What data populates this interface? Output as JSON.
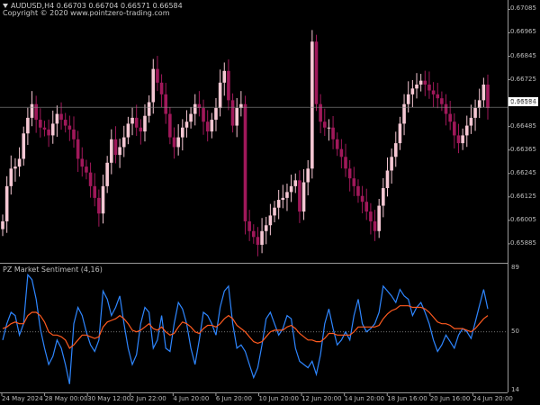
{
  "chart": {
    "symbol_line": "AUDUSD,H4  0.66703 0.66704 0.66571 0.66584",
    "copyright": "Copyright © 2020 www.pointzero-trading.com",
    "current_price": "0.66584",
    "indicator_title": "PZ Market Sentiment (4,16)",
    "colors": {
      "background": "#000000",
      "bull_candle": "#f5c7d3",
      "bear_candle": "#a0185a",
      "fast_line": "#2e86ff",
      "slow_line": "#ff5a1f"
    }
  },
  "price_axis": {
    "labels": [
      "0.67085",
      "0.66965",
      "0.66845",
      "0.66725",
      "0.66605",
      "0.66485",
      "0.66365",
      "0.66245",
      "0.66125",
      "0.66005",
      "0.65885"
    ]
  },
  "indicator_axis": {
    "labels": [
      "89",
      "50",
      "14"
    ]
  },
  "time_axis": {
    "labels": [
      "24 May 2024",
      "28 May 00:00",
      "30 May 12:00",
      "2 Jun 22:00",
      "4 Jun 20:00",
      "6 Jun 20:00",
      "10 Jun 20:00",
      "12 Jun 20:00",
      "14 Jun 20:00",
      "18 Jun 16:00",
      "20 Jun 16:00",
      "24 Jun 20:00"
    ]
  },
  "chart_data": [
    {
      "type": "candlestick",
      "title": "AUDUSD,H4",
      "ylim": [
        0.6582,
        0.6711
      ],
      "series": [
        {
          "name": "AUDUSD",
          "close": [
            0.66,
            0.6618,
            0.6627,
            0.6628,
            0.6632,
            0.6645,
            0.6653,
            0.666,
            0.6652,
            0.6648,
            0.6647,
            0.6644,
            0.665,
            0.6655,
            0.6652,
            0.6649,
            0.6647,
            0.6642,
            0.6632,
            0.6628,
            0.6625,
            0.6618,
            0.6612,
            0.6604,
            0.6618,
            0.663,
            0.6642,
            0.6634,
            0.6638,
            0.6643,
            0.665,
            0.6653,
            0.6648,
            0.6646,
            0.6654,
            0.6661,
            0.6678,
            0.6671,
            0.6665,
            0.6655,
            0.6643,
            0.6638,
            0.6643,
            0.6648,
            0.6651,
            0.6655,
            0.666,
            0.6658,
            0.6651,
            0.6646,
            0.6652,
            0.6658,
            0.6671,
            0.6677,
            0.6662,
            0.6649,
            0.6658,
            0.666,
            0.66,
            0.6595,
            0.6592,
            0.6588,
            0.6595,
            0.6598,
            0.6603,
            0.6607,
            0.6611,
            0.6612,
            0.6615,
            0.6618,
            0.6621,
            0.6605,
            0.662,
            0.6627,
            0.6692,
            0.666,
            0.6651,
            0.6648,
            0.6648,
            0.6642,
            0.6637,
            0.6633,
            0.6627,
            0.6622,
            0.6618,
            0.6613,
            0.661,
            0.6605,
            0.66,
            0.6595,
            0.6608,
            0.6617,
            0.6626,
            0.6633,
            0.664,
            0.665,
            0.666,
            0.6665,
            0.6668,
            0.667,
            0.6672,
            0.667,
            0.6667,
            0.6665,
            0.6663,
            0.666,
            0.6655,
            0.6651,
            0.6644,
            0.664,
            0.6644,
            0.6649,
            0.6653,
            0.6658,
            0.6662,
            0.667,
            0.6658
          ]
        }
      ]
    },
    {
      "type": "line",
      "title": "PZ Market Sentiment (4,16)",
      "ylim": [
        14,
        89
      ],
      "series": [
        {
          "name": "fast",
          "values": [
            45,
            55,
            62,
            60,
            48,
            55,
            85,
            82,
            70,
            52,
            40,
            30,
            35,
            45,
            40,
            30,
            18,
            55,
            65,
            60,
            50,
            42,
            38,
            45,
            75,
            70,
            60,
            65,
            72,
            55,
            40,
            30,
            36,
            55,
            65,
            62,
            40,
            45,
            60,
            40,
            38,
            55,
            68,
            64,
            55,
            40,
            30,
            45,
            62,
            60,
            55,
            48,
            65,
            75,
            78,
            55,
            40,
            42,
            38,
            30,
            22,
            28,
            42,
            58,
            62,
            55,
            48,
            52,
            60,
            58,
            40,
            32,
            30,
            28,
            32,
            24,
            36,
            55,
            64,
            52,
            42,
            45,
            50,
            45,
            60,
            70,
            55,
            50,
            52,
            55,
            62,
            78,
            75,
            72,
            68,
            76,
            72,
            70,
            60,
            65,
            68,
            62,
            55,
            45,
            38,
            42,
            48,
            44,
            40,
            48,
            52,
            50,
            46,
            56,
            66,
            76,
            64
          ]
        },
        {
          "name": "slow",
          "values": [
            52,
            53,
            55,
            56,
            55,
            55,
            60,
            62,
            62,
            60,
            56,
            50,
            48,
            48,
            47,
            45,
            40,
            42,
            45,
            48,
            48,
            47,
            46,
            47,
            53,
            56,
            57,
            58,
            60,
            58,
            55,
            51,
            50,
            51,
            53,
            55,
            52,
            51,
            53,
            50,
            48,
            49,
            53,
            56,
            55,
            53,
            50,
            49,
            52,
            54,
            54,
            53,
            55,
            58,
            60,
            58,
            54,
            52,
            50,
            47,
            44,
            43,
            44,
            47,
            50,
            51,
            51,
            51,
            53,
            54,
            52,
            49,
            47,
            45,
            45,
            44,
            44,
            46,
            49,
            49,
            48,
            48,
            48,
            48,
            50,
            53,
            53,
            53,
            53,
            53,
            54,
            58,
            61,
            63,
            64,
            66,
            66,
            66,
            65,
            65,
            65,
            64,
            62,
            59,
            56,
            55,
            55,
            54,
            52,
            52,
            52,
            51,
            50,
            52,
            55,
            58,
            60
          ]
        }
      ]
    }
  ]
}
